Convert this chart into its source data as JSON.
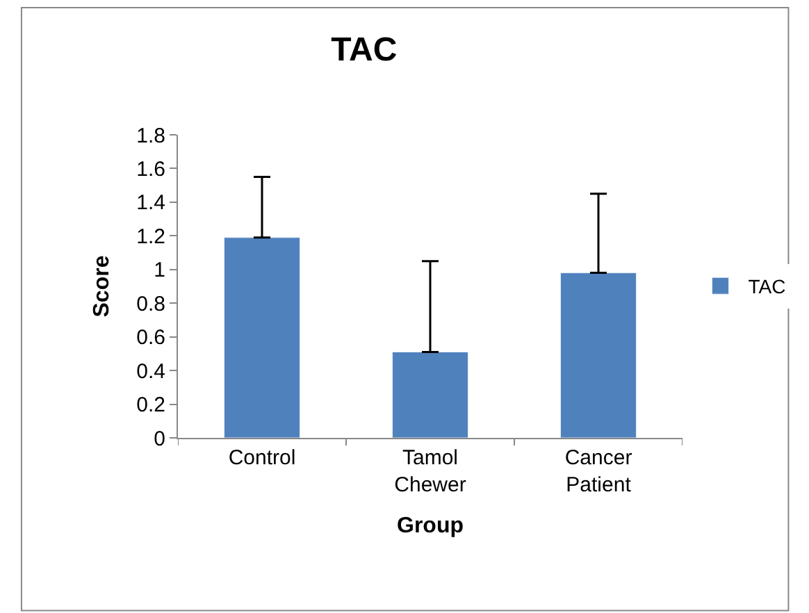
{
  "chart_data": {
    "type": "bar",
    "title": "TAC",
    "xlabel": "Group",
    "ylabel": "Score",
    "categories": [
      "Control",
      "Tamol Chewer",
      "Cancer Patient"
    ],
    "series": [
      {
        "name": "TAC",
        "color": "#4f81bd",
        "values": [
          1.19,
          0.51,
          0.98
        ],
        "errors": [
          [
            1.19,
            1.55
          ],
          [
            0.51,
            1.05
          ],
          [
            0.98,
            1.45
          ]
        ]
      }
    ],
    "ylim": [
      0,
      1.8
    ],
    "yticks": [
      0,
      {
        "value": 0.2,
        "label": "0.2"
      },
      {
        "value": 0.4,
        "label": "0.4"
      },
      {
        "value": 0.6,
        "label": "0.6"
      },
      {
        "value": 0.8,
        "label": "0.8"
      },
      1,
      {
        "value": 1.2,
        "label": "1.2"
      },
      {
        "value": 1.4,
        "label": "1.4"
      },
      {
        "value": 1.6,
        "label": "1.6"
      },
      {
        "value": 1.8,
        "label": "1.8"
      }
    ],
    "legend": "right"
  }
}
